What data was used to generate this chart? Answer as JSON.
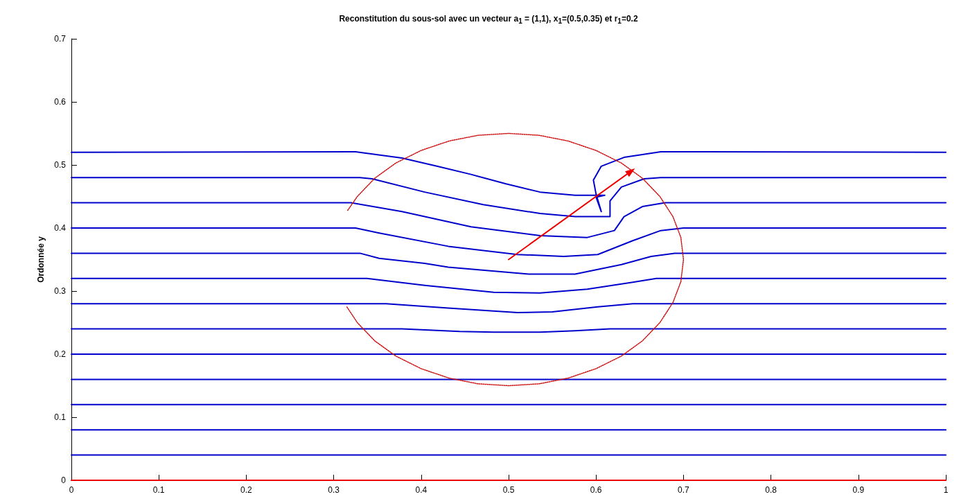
{
  "chart_data": {
    "type": "line",
    "title": "Reconstitution du sous-sol avec un vecteur a$_{1}$ = (1,1), x$_{1}$=(0.5,0.35) et r$_{1}$=0.2",
    "ylabel": "Ordonnée y",
    "xlim": [
      0,
      1
    ],
    "xticks": [
      0,
      0.1,
      0.2,
      0.3,
      0.4,
      0.5,
      0.6,
      0.7,
      0.8,
      0.9,
      1
    ],
    "ylim": [
      0,
      0.7
    ],
    "yticks": [
      0,
      0.1,
      0.2,
      0.3,
      0.4,
      0.5,
      0.6,
      0.7
    ],
    "grid": false,
    "marker": "none",
    "line_style": "solid",
    "series": [
      {
        "color": "#0000cc",
        "x": [
          0,
          0.325,
          0.378,
          0.418,
          0.457,
          0.497,
          0.536,
          0.576,
          0.61,
          0.6,
          0.606,
          0.6,
          0.597,
          0.606,
          0.632,
          0.674,
          1
        ],
        "values": [
          0.52,
          0.521,
          0.511,
          0.498,
          0.485,
          0.47,
          0.457,
          0.452,
          0.452,
          0.449,
          0.426,
          0.454,
          0.476,
          0.498,
          0.512,
          0.521,
          0.52
        ]
      },
      {
        "color": "#0000cc",
        "x": [
          0,
          0.33,
          0.344,
          0.404,
          0.471,
          0.536,
          0.576,
          0.616,
          0.616,
          0.629,
          0.655,
          0.674,
          1
        ],
        "values": [
          0.48,
          0.48,
          0.478,
          0.457,
          0.437,
          0.423,
          0.418,
          0.418,
          0.443,
          0.465,
          0.478,
          0.48,
          0.48
        ]
      },
      {
        "color": "#0000cc",
        "x": [
          0,
          0.32,
          0.378,
          0.457,
          0.536,
          0.59,
          0.621,
          0.632,
          0.653,
          0.679,
          1
        ],
        "values": [
          0.44,
          0.44,
          0.426,
          0.402,
          0.388,
          0.385,
          0.396,
          0.418,
          0.434,
          0.44,
          0.44
        ]
      },
      {
        "color": "#0000cc",
        "x": [
          0,
          0.325,
          0.352,
          0.431,
          0.51,
          0.563,
          0.602,
          0.642,
          0.674,
          0.7,
          1
        ],
        "values": [
          0.4,
          0.4,
          0.392,
          0.371,
          0.358,
          0.355,
          0.358,
          0.38,
          0.396,
          0.4,
          0.4
        ]
      },
      {
        "color": "#0000cc",
        "x": [
          0,
          0.33,
          0.352,
          0.404,
          0.431,
          0.523,
          0.576,
          0.629,
          0.663,
          0.69,
          1
        ],
        "values": [
          0.36,
          0.36,
          0.352,
          0.344,
          0.338,
          0.327,
          0.327,
          0.342,
          0.355,
          0.36,
          0.36
        ]
      },
      {
        "color": "#0000cc",
        "x": [
          0,
          0.338,
          0.404,
          0.483,
          0.536,
          0.59,
          0.642,
          0.669,
          1
        ],
        "values": [
          0.32,
          0.32,
          0.309,
          0.298,
          0.297,
          0.303,
          0.314,
          0.32,
          0.32
        ]
      },
      {
        "color": "#0000cc",
        "x": [
          0,
          0.36,
          0.431,
          0.51,
          0.55,
          0.602,
          0.642,
          1
        ],
        "values": [
          0.28,
          0.28,
          0.273,
          0.266,
          0.267,
          0.275,
          0.28,
          0.28
        ]
      },
      {
        "color": "#0000cc",
        "x": [
          0,
          0.378,
          0.444,
          0.483,
          0.536,
          0.576,
          0.616,
          1
        ],
        "values": [
          0.24,
          0.24,
          0.236,
          0.235,
          0.235,
          0.237,
          0.24,
          0.24
        ]
      },
      {
        "color": "#0000cc",
        "x": [
          0,
          1
        ],
        "values": [
          0.2,
          0.2
        ]
      },
      {
        "color": "#0000cc",
        "x": [
          0,
          1
        ],
        "values": [
          0.16,
          0.16
        ]
      },
      {
        "color": "#0000cc",
        "x": [
          0,
          1
        ],
        "values": [
          0.12,
          0.12
        ]
      },
      {
        "color": "#0000cc",
        "x": [
          0,
          1
        ],
        "values": [
          0.08,
          0.08
        ]
      },
      {
        "color": "#0000cc",
        "x": [
          0,
          1
        ],
        "values": [
          0.04,
          0.04
        ]
      },
      {
        "color": "#ee0000",
        "x": [
          0,
          1
        ],
        "values": [
          0,
          0
        ]
      },
      {
        "color": "#cc1111",
        "line_style": "dotted",
        "x": [
          0.316,
          0.327,
          0.347,
          0.371,
          0.4,
          0.432,
          0.465,
          0.5,
          0.535,
          0.568,
          0.6,
          0.629,
          0.653,
          0.673,
          0.688,
          0.697,
          0.7,
          0.697,
          0.688,
          0.673,
          0.653,
          0.629,
          0.6,
          0.568,
          0.535,
          0.5,
          0.465,
          0.432,
          0.4,
          0.371,
          0.347,
          0.327,
          0.315
        ],
        "values": [
          0.428,
          0.45,
          0.479,
          0.503,
          0.523,
          0.538,
          0.547,
          0.55,
          0.547,
          0.538,
          0.523,
          0.503,
          0.479,
          0.45,
          0.418,
          0.385,
          0.35,
          0.315,
          0.282,
          0.25,
          0.221,
          0.197,
          0.177,
          0.162,
          0.153,
          0.15,
          0.153,
          0.162,
          0.177,
          0.197,
          0.221,
          0.25,
          0.275
        ]
      },
      {
        "color": "#ee0000",
        "marker": "triangle",
        "x": [
          0.5,
          0.64
        ],
        "values": [
          0.35,
          0.49
        ]
      }
    ]
  }
}
